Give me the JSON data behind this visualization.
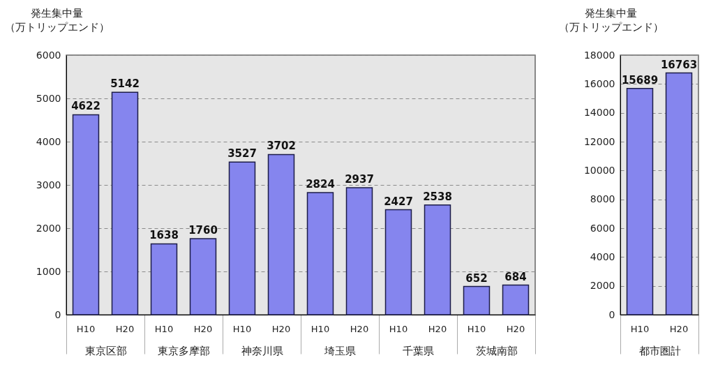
{
  "chart_data": [
    {
      "type": "bar",
      "ylabel": "発生集中量（万トリップエンド）",
      "categories": [
        "東京区部",
        "東京多摩部",
        "神奈川県",
        "埼玉県",
        "千葉県",
        "茨城南部"
      ],
      "series": [
        {
          "name": "H10",
          "color": "#8585ee",
          "values": [
            4622,
            1638,
            3527,
            2824,
            2427,
            652
          ]
        },
        {
          "name": "H20",
          "color": "#8585ee",
          "values": [
            5142,
            1760,
            3702,
            2937,
            2538,
            684
          ]
        }
      ],
      "ylim": [
        0,
        6000
      ],
      "yticks": [
        0,
        1000,
        2000,
        3000,
        4000,
        5000,
        6000
      ],
      "grid": "y",
      "data_labels": true
    },
    {
      "type": "bar",
      "ylabel": "発生集中量（万トリップエンド）",
      "categories": [
        "都市圏計"
      ],
      "series": [
        {
          "name": "H10",
          "color": "#8585ee",
          "values": [
            15689
          ]
        },
        {
          "name": "H20",
          "color": "#8585ee",
          "values": [
            16763
          ]
        }
      ],
      "ylim": [
        0,
        18000
      ],
      "yticks": [
        0,
        2000,
        4000,
        6000,
        8000,
        10000,
        12000,
        14000,
        16000,
        18000
      ],
      "grid": "y",
      "data_labels": true
    }
  ]
}
